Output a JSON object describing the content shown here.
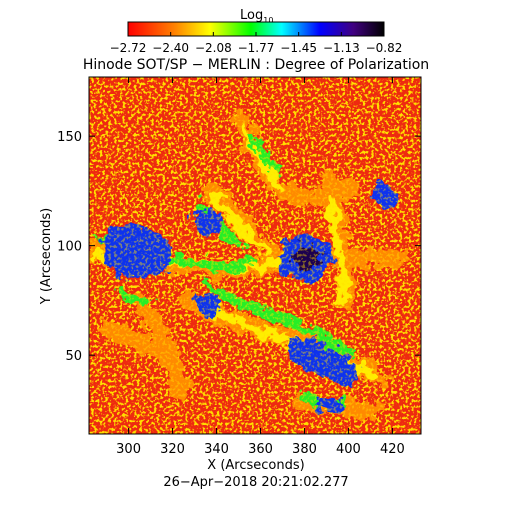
{
  "colorbar": {
    "label_main": "Log",
    "label_sub": "10",
    "ticks": [
      "−2.72",
      "−2.40",
      "−2.08",
      "−1.77",
      "−1.45",
      "−1.13",
      "−0.82"
    ],
    "palette": [
      "#ff0000",
      "#ff8000",
      "#ffff00",
      "#00ff00",
      "#00ffff",
      "#0000ff",
      "#400080",
      "#000000"
    ]
  },
  "plot": {
    "title": "Hinode SOT/SP − MERLIN : Degree of Polarization",
    "xlabel": "X (Arcseconds)",
    "ylabel": "Y (Arcseconds)",
    "xlim": [
      282,
      433
    ],
    "ylim": [
      14,
      177
    ],
    "x_ticks": [
      "300",
      "320",
      "340",
      "360",
      "380",
      "400",
      "420"
    ],
    "y_ticks": [
      "50",
      "100",
      "150"
    ],
    "timestamp": "26−Apr−2018 20:21:02.277",
    "field_colors": {
      "background": "#ee2a10",
      "orange": "#ff8a00",
      "yellow": "#ffee00",
      "green": "#28ee28",
      "cyan": "#00e0ff",
      "blue": "#1030ee",
      "dark": "#1a0050"
    }
  }
}
